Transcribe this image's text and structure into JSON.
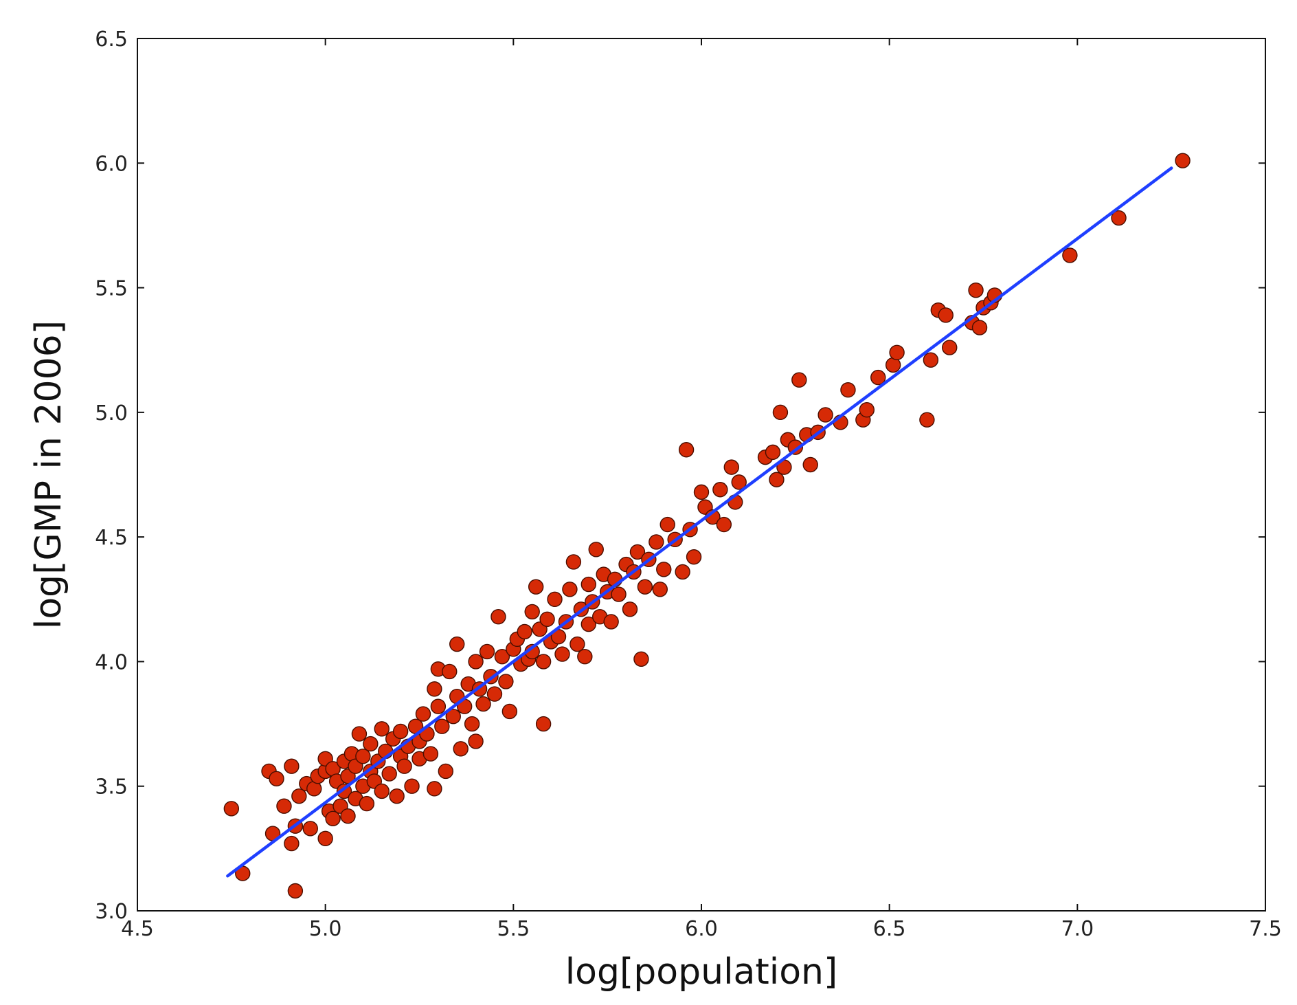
{
  "chart_data": {
    "type": "scatter",
    "title": "",
    "xlabel": "log[population]",
    "ylabel": "log[GMP in 2006]",
    "xlim": [
      4.5,
      7.5
    ],
    "ylim": [
      3.0,
      6.5
    ],
    "xticks": [
      "4.5",
      "5.0",
      "5.5",
      "6.0",
      "6.5",
      "7.0",
      "7.5"
    ],
    "yticks": [
      "3.0",
      "3.5",
      "4.0",
      "4.5",
      "5.0",
      "5.5",
      "6.0",
      "6.5"
    ],
    "grid": false,
    "legend": "none",
    "colors": {
      "points": "#d62a06",
      "point_edge": "#4a0e00",
      "fit_line": "#1f3fff",
      "axes": "#111111"
    },
    "series": [
      {
        "kind": "points",
        "points": [
          [
            4.75,
            3.41
          ],
          [
            4.78,
            3.15
          ],
          [
            4.85,
            3.56
          ],
          [
            4.86,
            3.31
          ],
          [
            4.87,
            3.53
          ],
          [
            4.89,
            3.42
          ],
          [
            4.91,
            3.58
          ],
          [
            4.91,
            3.27
          ],
          [
            4.92,
            3.34
          ],
          [
            4.92,
            3.08
          ],
          [
            4.93,
            3.46
          ],
          [
            4.95,
            3.51
          ],
          [
            4.96,
            3.33
          ],
          [
            4.97,
            3.49
          ],
          [
            4.98,
            3.54
          ],
          [
            5.0,
            3.56
          ],
          [
            5.0,
            3.29
          ],
          [
            5.0,
            3.61
          ],
          [
            5.01,
            3.4
          ],
          [
            5.02,
            3.37
          ],
          [
            5.02,
            3.57
          ],
          [
            5.03,
            3.52
          ],
          [
            5.04,
            3.42
          ],
          [
            5.05,
            3.6
          ],
          [
            5.05,
            3.48
          ],
          [
            5.06,
            3.54
          ],
          [
            5.06,
            3.38
          ],
          [
            5.07,
            3.63
          ],
          [
            5.08,
            3.45
          ],
          [
            5.08,
            3.58
          ],
          [
            5.09,
            3.71
          ],
          [
            5.1,
            3.5
          ],
          [
            5.1,
            3.62
          ],
          [
            5.11,
            3.43
          ],
          [
            5.12,
            3.56
          ],
          [
            5.12,
            3.67
          ],
          [
            5.13,
            3.52
          ],
          [
            5.14,
            3.6
          ],
          [
            5.15,
            3.48
          ],
          [
            5.15,
            3.73
          ],
          [
            5.16,
            3.64
          ],
          [
            5.17,
            3.55
          ],
          [
            5.18,
            3.69
          ],
          [
            5.19,
            3.46
          ],
          [
            5.2,
            3.62
          ],
          [
            5.2,
            3.72
          ],
          [
            5.21,
            3.58
          ],
          [
            5.22,
            3.66
          ],
          [
            5.23,
            3.5
          ],
          [
            5.24,
            3.74
          ],
          [
            5.25,
            3.68
          ],
          [
            5.25,
            3.61
          ],
          [
            5.26,
            3.79
          ],
          [
            5.27,
            3.71
          ],
          [
            5.28,
            3.63
          ],
          [
            5.29,
            3.89
          ],
          [
            5.29,
            3.49
          ],
          [
            5.3,
            3.82
          ],
          [
            5.3,
            3.97
          ],
          [
            5.31,
            3.74
          ],
          [
            5.32,
            3.56
          ],
          [
            5.33,
            3.96
          ],
          [
            5.34,
            3.78
          ],
          [
            5.35,
            3.86
          ],
          [
            5.35,
            4.07
          ],
          [
            5.36,
            3.65
          ],
          [
            5.37,
            3.82
          ],
          [
            5.38,
            3.91
          ],
          [
            5.39,
            3.75
          ],
          [
            5.4,
            3.68
          ],
          [
            5.4,
            4.0
          ],
          [
            5.41,
            3.89
          ],
          [
            5.42,
            3.83
          ],
          [
            5.43,
            4.04
          ],
          [
            5.44,
            3.94
          ],
          [
            5.45,
            3.87
          ],
          [
            5.46,
            4.18
          ],
          [
            5.47,
            4.02
          ],
          [
            5.48,
            3.92
          ],
          [
            5.49,
            3.8
          ],
          [
            5.5,
            4.05
          ],
          [
            5.51,
            4.09
          ],
          [
            5.52,
            3.99
          ],
          [
            5.53,
            4.12
          ],
          [
            5.54,
            4.01
          ],
          [
            5.55,
            4.2
          ],
          [
            5.55,
            4.04
          ],
          [
            5.56,
            4.3
          ],
          [
            5.57,
            4.13
          ],
          [
            5.58,
            4.0
          ],
          [
            5.58,
            3.75
          ],
          [
            5.59,
            4.17
          ],
          [
            5.6,
            4.08
          ],
          [
            5.61,
            4.25
          ],
          [
            5.62,
            4.1
          ],
          [
            5.63,
            4.03
          ],
          [
            5.64,
            4.16
          ],
          [
            5.65,
            4.29
          ],
          [
            5.66,
            4.4
          ],
          [
            5.67,
            4.07
          ],
          [
            5.68,
            4.21
          ],
          [
            5.69,
            4.02
          ],
          [
            5.7,
            4.15
          ],
          [
            5.7,
            4.31
          ],
          [
            5.71,
            4.24
          ],
          [
            5.72,
            4.45
          ],
          [
            5.73,
            4.18
          ],
          [
            5.74,
            4.35
          ],
          [
            5.75,
            4.28
          ],
          [
            5.76,
            4.16
          ],
          [
            5.77,
            4.33
          ],
          [
            5.78,
            4.27
          ],
          [
            5.8,
            4.39
          ],
          [
            5.81,
            4.21
          ],
          [
            5.82,
            4.36
          ],
          [
            5.83,
            4.44
          ],
          [
            5.84,
            4.01
          ],
          [
            5.85,
            4.3
          ],
          [
            5.86,
            4.41
          ],
          [
            5.88,
            4.48
          ],
          [
            5.89,
            4.29
          ],
          [
            5.9,
            4.37
          ],
          [
            5.91,
            4.55
          ],
          [
            5.93,
            4.49
          ],
          [
            5.95,
            4.36
          ],
          [
            5.96,
            4.85
          ],
          [
            5.97,
            4.53
          ],
          [
            5.98,
            4.42
          ],
          [
            6.0,
            4.68
          ],
          [
            6.01,
            4.62
          ],
          [
            6.03,
            4.58
          ],
          [
            6.05,
            4.69
          ],
          [
            6.06,
            4.55
          ],
          [
            6.08,
            4.78
          ],
          [
            6.09,
            4.64
          ],
          [
            6.1,
            4.72
          ],
          [
            6.17,
            4.82
          ],
          [
            6.19,
            4.84
          ],
          [
            6.2,
            4.73
          ],
          [
            6.21,
            5.0
          ],
          [
            6.22,
            4.78
          ],
          [
            6.23,
            4.89
          ],
          [
            6.25,
            4.86
          ],
          [
            6.26,
            5.13
          ],
          [
            6.28,
            4.91
          ],
          [
            6.29,
            4.79
          ],
          [
            6.31,
            4.92
          ],
          [
            6.33,
            4.99
          ],
          [
            6.37,
            4.96
          ],
          [
            6.39,
            5.09
          ],
          [
            6.43,
            4.97
          ],
          [
            6.44,
            5.01
          ],
          [
            6.47,
            5.14
          ],
          [
            6.51,
            5.19
          ],
          [
            6.52,
            5.24
          ],
          [
            6.6,
            4.97
          ],
          [
            6.61,
            5.21
          ],
          [
            6.63,
            5.41
          ],
          [
            6.65,
            5.39
          ],
          [
            6.66,
            5.26
          ],
          [
            6.72,
            5.36
          ],
          [
            6.73,
            5.49
          ],
          [
            6.74,
            5.34
          ],
          [
            6.75,
            5.42
          ],
          [
            6.77,
            5.44
          ],
          [
            6.78,
            5.47
          ],
          [
            6.98,
            5.63
          ],
          [
            7.11,
            5.78
          ],
          [
            7.28,
            6.01
          ]
        ]
      },
      {
        "kind": "fit_line",
        "x": [
          4.74,
          7.25
        ],
        "y": [
          3.14,
          5.98
        ]
      }
    ]
  }
}
